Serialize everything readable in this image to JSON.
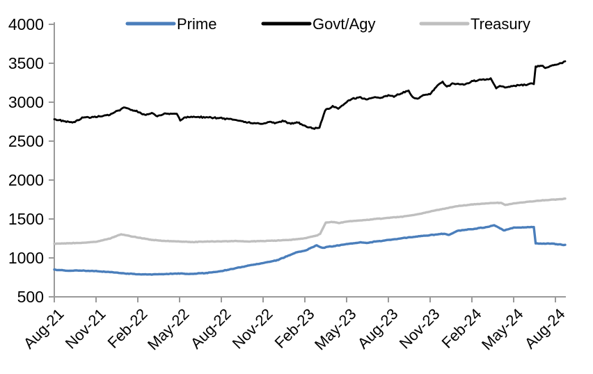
{
  "chart_data": {
    "type": "line",
    "title": "",
    "x_axis": {
      "tick_labels": [
        "Aug-21",
        "Nov-21",
        "Feb-22",
        "May-22",
        "Aug-22",
        "Nov-22",
        "Feb-23",
        "May-23",
        "Aug-23",
        "Nov-23",
        "Feb-24",
        "May-24",
        "Aug-24"
      ],
      "tick_interval_months": 3,
      "unit": "months since Aug-2021",
      "range_months": [
        0,
        36.7
      ]
    },
    "y_axis": {
      "min": 500,
      "max": 4000,
      "tick_step": 500,
      "tick_values": [
        500,
        1000,
        1500,
        2000,
        2500,
        3000,
        3500,
        4000
      ],
      "tick_labels": [
        "500",
        "1000",
        "1500",
        "2000",
        "2500",
        "3000",
        "3500",
        "4000"
      ]
    },
    "legend": {
      "position": "top",
      "entries": [
        {
          "label": "Prime",
          "color": "#4A7EBB"
        },
        {
          "label": "Govt/Agy",
          "color": "#000000"
        },
        {
          "label": "Treasury",
          "color": "#BFBFBF"
        }
      ]
    },
    "axis_color": "#999999",
    "series": [
      {
        "name": "Treasury",
        "color": "#BFBFBF",
        "points": [
          [
            0,
            1182
          ],
          [
            1,
            1188
          ],
          [
            2,
            1194
          ],
          [
            3,
            1208
          ],
          [
            4,
            1250
          ],
          [
            4.8,
            1304
          ],
          [
            5.2,
            1288
          ],
          [
            6,
            1262
          ],
          [
            7,
            1232
          ],
          [
            8,
            1217
          ],
          [
            9,
            1211
          ],
          [
            10,
            1203
          ],
          [
            11,
            1211
          ],
          [
            12,
            1211
          ],
          [
            13,
            1217
          ],
          [
            14,
            1211
          ],
          [
            15,
            1217
          ],
          [
            16,
            1223
          ],
          [
            17,
            1232
          ],
          [
            18,
            1252
          ],
          [
            18.9,
            1290
          ],
          [
            19.1,
            1310
          ],
          [
            19.5,
            1452
          ],
          [
            20,
            1462
          ],
          [
            20.45,
            1448
          ],
          [
            21,
            1468
          ],
          [
            22,
            1480
          ],
          [
            23,
            1498
          ],
          [
            24,
            1514
          ],
          [
            25,
            1530
          ],
          [
            26,
            1556
          ],
          [
            27,
            1596
          ],
          [
            28,
            1632
          ],
          [
            29,
            1666
          ],
          [
            30,
            1686
          ],
          [
            31,
            1700
          ],
          [
            31.6,
            1708
          ],
          [
            32.1,
            1706
          ],
          [
            32.4,
            1680
          ],
          [
            33,
            1700
          ],
          [
            34,
            1720
          ],
          [
            35,
            1738
          ],
          [
            36,
            1750
          ],
          [
            36.7,
            1760
          ]
        ]
      },
      {
        "name": "Prime",
        "color": "#4A7EBB",
        "points": [
          [
            0,
            848
          ],
          [
            1,
            834
          ],
          [
            2,
            838
          ],
          [
            3,
            830
          ],
          [
            4,
            818
          ],
          [
            5,
            802
          ],
          [
            6,
            791
          ],
          [
            7,
            788
          ],
          [
            8,
            792
          ],
          [
            9,
            800
          ],
          [
            9.5,
            794
          ],
          [
            10,
            797
          ],
          [
            11,
            808
          ],
          [
            12,
            830
          ],
          [
            13,
            866
          ],
          [
            14,
            903
          ],
          [
            15,
            933
          ],
          [
            16,
            970
          ],
          [
            17,
            1042
          ],
          [
            17.35,
            1070
          ],
          [
            18,
            1092
          ],
          [
            18.85,
            1162
          ],
          [
            19.25,
            1128
          ],
          [
            19.6,
            1140
          ],
          [
            20,
            1150
          ],
          [
            20.5,
            1162
          ],
          [
            21,
            1176
          ],
          [
            21.5,
            1188
          ],
          [
            22,
            1198
          ],
          [
            22.5,
            1192
          ],
          [
            23,
            1208
          ],
          [
            24,
            1230
          ],
          [
            25,
            1252
          ],
          [
            26,
            1275
          ],
          [
            27,
            1292
          ],
          [
            28,
            1312
          ],
          [
            28.35,
            1294
          ],
          [
            29,
            1348
          ],
          [
            30,
            1370
          ],
          [
            31,
            1394
          ],
          [
            31.6,
            1418
          ],
          [
            32.3,
            1354
          ],
          [
            33,
            1388
          ],
          [
            34,
            1394
          ],
          [
            34.45,
            1396
          ],
          [
            34.58,
            1186
          ],
          [
            35,
            1182
          ],
          [
            35.5,
            1186
          ],
          [
            36,
            1178
          ],
          [
            36.7,
            1164
          ]
        ]
      },
      {
        "name": "Govt/Agy",
        "color": "#000000",
        "points": [
          [
            0,
            2780
          ],
          [
            0.6,
            2762
          ],
          [
            1.3,
            2737
          ],
          [
            2,
            2798
          ],
          [
            3,
            2812
          ],
          [
            4,
            2843
          ],
          [
            4.7,
            2902
          ],
          [
            5.1,
            2938
          ],
          [
            5.4,
            2905
          ],
          [
            6,
            2882
          ],
          [
            6.5,
            2836
          ],
          [
            7,
            2860
          ],
          [
            7.4,
            2822
          ],
          [
            8,
            2854
          ],
          [
            8.8,
            2856
          ],
          [
            9.05,
            2772
          ],
          [
            9.4,
            2806
          ],
          [
            10,
            2812
          ],
          [
            11,
            2806
          ],
          [
            12,
            2794
          ],
          [
            13,
            2774
          ],
          [
            14,
            2738
          ],
          [
            15,
            2722
          ],
          [
            15.5,
            2750
          ],
          [
            16,
            2732
          ],
          [
            16.4,
            2760
          ],
          [
            17,
            2722
          ],
          [
            17.5,
            2738
          ],
          [
            18,
            2694
          ],
          [
            18.6,
            2662
          ],
          [
            19.05,
            2676
          ],
          [
            19.45,
            2892
          ],
          [
            20,
            2944
          ],
          [
            20.4,
            2916
          ],
          [
            21,
            3008
          ],
          [
            21.5,
            3050
          ],
          [
            22,
            3062
          ],
          [
            22.45,
            3036
          ],
          [
            23,
            3066
          ],
          [
            23.5,
            3054
          ],
          [
            24,
            3090
          ],
          [
            24.4,
            3078
          ],
          [
            25,
            3120
          ],
          [
            25.45,
            3150
          ],
          [
            25.8,
            3052
          ],
          [
            26.1,
            3046
          ],
          [
            26.5,
            3086
          ],
          [
            27,
            3106
          ],
          [
            27.6,
            3228
          ],
          [
            27.9,
            3264
          ],
          [
            28.2,
            3196
          ],
          [
            28.6,
            3238
          ],
          [
            29,
            3240
          ],
          [
            29.5,
            3228
          ],
          [
            30,
            3268
          ],
          [
            30.5,
            3282
          ],
          [
            31,
            3290
          ],
          [
            31.35,
            3300
          ],
          [
            31.75,
            3182
          ],
          [
            32,
            3210
          ],
          [
            32.45,
            3188
          ],
          [
            33,
            3208
          ],
          [
            33.5,
            3220
          ],
          [
            34,
            3228
          ],
          [
            34.25,
            3240
          ],
          [
            34.45,
            3238
          ],
          [
            34.58,
            3460
          ],
          [
            35,
            3468
          ],
          [
            35.35,
            3440
          ],
          [
            35.7,
            3468
          ],
          [
            36.05,
            3480
          ],
          [
            36.4,
            3502
          ],
          [
            36.7,
            3522
          ]
        ]
      }
    ]
  }
}
